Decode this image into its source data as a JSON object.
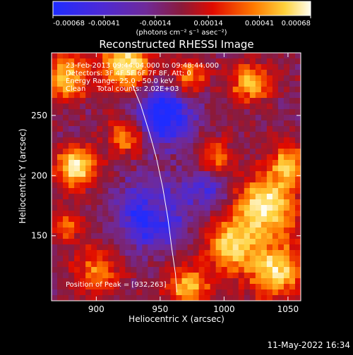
{
  "app": {
    "footer_timestamp": "11-May-2022 16:34"
  },
  "colors": {
    "background": "#000000",
    "colorbar_stops": [
      "#1f2cff",
      "#4b2ad8",
      "#6f2a9a",
      "#8b1a3a",
      "#e00a00",
      "#ff7a00",
      "#ffd23c",
      "#fffef0"
    ]
  },
  "chart_data": {
    "type": "heatmap",
    "title": "Reconstructed RHESSI Image",
    "xlabel": "Heliocentric X (arcsec)",
    "ylabel": "Heliocentric Y (arcsec)",
    "xlim": [
      865,
      1060
    ],
    "ylim": [
      96,
      302
    ],
    "xticks": [
      900,
      950,
      1000,
      1050
    ],
    "yticks": [
      150,
      200,
      250
    ],
    "colorbar": {
      "min": -0.00068,
      "max": 0.00068,
      "ticks": [
        {
          "value": -0.00068,
          "label": "-0.00068"
        },
        {
          "value": -0.00041,
          "label": "-0.00041"
        },
        {
          "value": -0.00014,
          "label": "-0.00014"
        },
        {
          "value": 0.00014,
          "label": "0.00014"
        },
        {
          "value": 0.00041,
          "label": "0.00041"
        },
        {
          "value": 0.00068,
          "label": "0.00068"
        }
      ],
      "unit_label": "(photons cm⁻² s⁻¹ asec⁻²)"
    },
    "annotations": {
      "time_range": "23-Feb-2013 09:44:04.000 to 09:48:44.000",
      "detectors": "Detectors: 3F 4F 5F 6F 7F 8F, Att: 0",
      "energy_range": "Energy Range: 25.0 - 50.0 keV",
      "clean_counts": "Clean     Total counts: 2.02E+03",
      "peak_position": "Position of Peak = [932,263]"
    },
    "limb_curve": [
      [
        928,
        276
      ],
      [
        935,
        258
      ],
      [
        942,
        234
      ],
      [
        947,
        215
      ],
      [
        952,
        190
      ],
      [
        956,
        165
      ],
      [
        959,
        140
      ],
      [
        962,
        118
      ],
      [
        963,
        103
      ]
    ]
  }
}
